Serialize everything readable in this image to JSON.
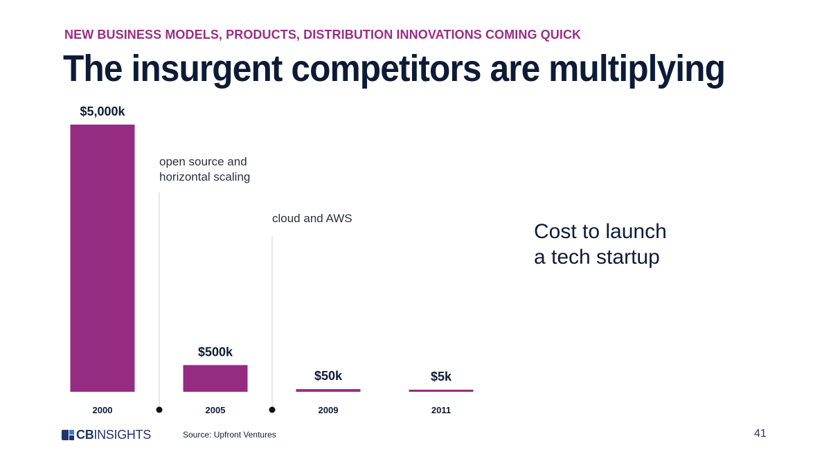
{
  "header": {
    "subtitle": "NEW BUSINESS MODELS, PRODUCTS, DISTRIBUTION INNOVATIONS COMING QUICK",
    "title": "The insurgent competitors are multiplying"
  },
  "chart_data": {
    "type": "bar",
    "categories": [
      "2000",
      "2005",
      "2009",
      "2011"
    ],
    "values": [
      5000,
      500,
      50,
      5
    ],
    "value_labels": [
      "$5,000k",
      "$500k",
      "$50k",
      "$5k"
    ],
    "unit": "k USD",
    "bar_color": "#952c82",
    "annotations": [
      {
        "text_lines": [
          "open source and",
          "horizontal scaling"
        ],
        "between": [
          "2000",
          "2005"
        ]
      },
      {
        "text_lines": [
          "cloud and AWS"
        ],
        "between": [
          "2005",
          "2009"
        ]
      }
    ],
    "side_label": [
      "Cost to launch",
      "a tech startup"
    ]
  },
  "footer": {
    "logo_bold": "CB",
    "logo_rest": "INSIGHTS",
    "source": "Source: Upfront Ventures",
    "page_number": "41"
  },
  "colors": {
    "accent": "#9b2d86",
    "title": "#0d1b36",
    "bar": "#952c82"
  }
}
